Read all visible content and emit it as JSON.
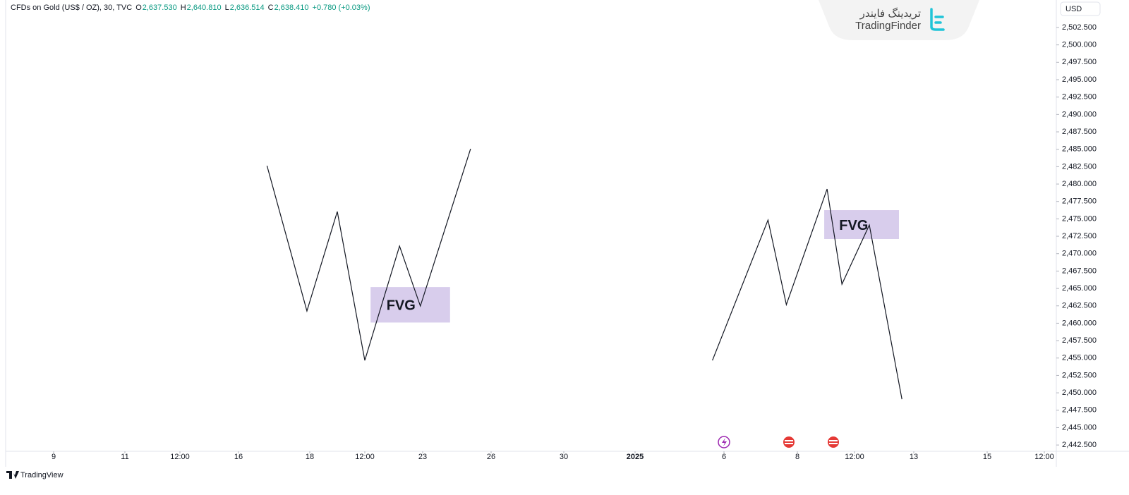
{
  "header": {
    "symbol": "CFDs on Gold (US$ / OZ), 30, TVC",
    "ohlc": [
      {
        "key": "O",
        "value": "2,637.530"
      },
      {
        "key": "H",
        "value": "2,640.810"
      },
      {
        "key": "L",
        "value": "2,636.514"
      },
      {
        "key": "C",
        "value": "2,638.410"
      }
    ],
    "change": "+0.780 (+0.03%)",
    "currency": "USD"
  },
  "logo": {
    "persian": "تریدینگ فایندر",
    "name": "TradingFinder"
  },
  "footer": "TradingView",
  "chart_data": {
    "type": "line",
    "series": [
      {
        "name": "left-pattern",
        "color": "#131722",
        "x": [
          3.4,
          3.96,
          4.5,
          5.0,
          5.6,
          5.96,
          6.7
        ],
        "values": [
          2482.64,
          2461.76,
          2476.05,
          2454.66,
          2471.09,
          2462.47,
          2485.06
        ]
      },
      {
        "name": "right-pattern",
        "color": "#131722",
        "x": [
          9.87,
          10.6,
          10.85,
          11.52,
          11.78,
          12.25,
          12.8
        ],
        "values": [
          2454.66,
          2474.83,
          2462.67,
          2479.29,
          2465.61,
          2474.12,
          2449.09
        ]
      }
    ],
    "zones": [
      {
        "label": "FVG",
        "x": [
          5.1,
          6.4
        ],
        "y": [
          2460.1,
          2465.2
        ],
        "color": "#d1c4e9"
      },
      {
        "label": "FVG",
        "x": [
          11.47,
          12.75
        ],
        "y": [
          2472.1,
          2476.25
        ],
        "color": "#d1c4e9"
      }
    ],
    "ylim": [
      2441.6,
      2506.45
    ],
    "yticks": [
      {
        "value": 2502.5,
        "label": "2,502.500"
      },
      {
        "value": 2500,
        "label": "2,500.000"
      },
      {
        "value": 2497.5,
        "label": "2,497.500"
      },
      {
        "value": 2495,
        "label": "2,495.000"
      },
      {
        "value": 2492.5,
        "label": "2,492.500"
      },
      {
        "value": 2490,
        "label": "2,490.000"
      },
      {
        "value": 2487.5,
        "label": "2,487.500"
      },
      {
        "value": 2485,
        "label": "2,485.000"
      },
      {
        "value": 2482.5,
        "label": "2,482.500"
      },
      {
        "value": 2480,
        "label": "2,480.000"
      },
      {
        "value": 2477.5,
        "label": "2,477.500"
      },
      {
        "value": 2475,
        "label": "2,475.000"
      },
      {
        "value": 2472.5,
        "label": "2,472.500"
      },
      {
        "value": 2470,
        "label": "2,470.000"
      },
      {
        "value": 2467.5,
        "label": "2,467.500"
      },
      {
        "value": 2465,
        "label": "2,465.000"
      },
      {
        "value": 2462.5,
        "label": "2,462.500"
      },
      {
        "value": 2460,
        "label": "2,460.000"
      },
      {
        "value": 2457.5,
        "label": "2,457.500"
      },
      {
        "value": 2455,
        "label": "2,455.000"
      },
      {
        "value": 2452.5,
        "label": "2,452.500"
      },
      {
        "value": 2450,
        "label": "2,450.000"
      },
      {
        "value": 2447.5,
        "label": "2,447.500"
      },
      {
        "value": 2445,
        "label": "2,445.000"
      },
      {
        "value": 2442.5,
        "label": "2,442.500"
      }
    ],
    "xticks": [
      {
        "value": 0,
        "label": "9"
      },
      {
        "value": 1,
        "label": "11"
      },
      {
        "value": 2,
        "label": "12:00"
      },
      {
        "value": 3,
        "label": "16"
      },
      {
        "value": 4,
        "label": "18"
      },
      {
        "value": 5,
        "label": "12:00"
      },
      {
        "value": 6,
        "label": "23"
      },
      {
        "value": 7,
        "label": "26"
      },
      {
        "value": 8,
        "label": "30"
      },
      {
        "value": 9,
        "label": "2025"
      },
      {
        "value": 10,
        "label": "6"
      },
      {
        "value": 11,
        "label": "8"
      },
      {
        "value": 12,
        "label": "12:00"
      },
      {
        "value": 13,
        "label": "13"
      },
      {
        "value": 14,
        "label": "15"
      },
      {
        "value": 15,
        "label": "12:00"
      }
    ]
  }
}
